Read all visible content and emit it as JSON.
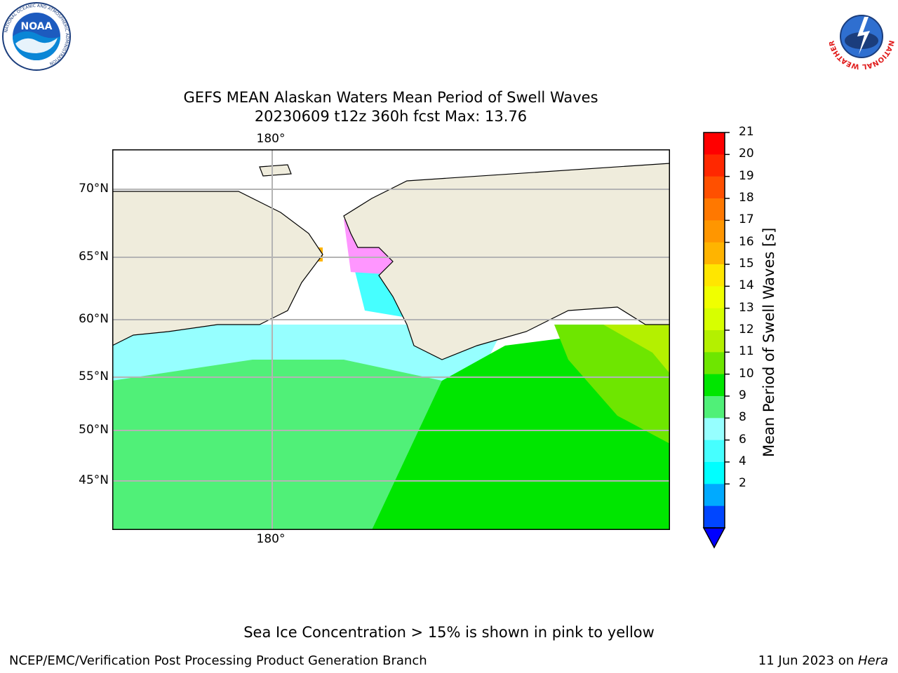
{
  "title": {
    "line1": "GEFS MEAN Alaskan Waters Mean Period of Swell Waves",
    "line2": "20230609 t12z 360h fcst   Max: 13.76"
  },
  "logos": {
    "left": {
      "name": "NOAA",
      "ring_text": "NATIONAL OCEANIC AND ATMOSPHERIC ADMINISTRATION",
      "bottom_text": "U.S. DEPARTMENT OF COMMERCE"
    },
    "right": {
      "name": "NATIONAL WEATHER SERVICE"
    }
  },
  "map": {
    "top_lon_label": "180°",
    "bottom_lon_label": "180°",
    "lat_labels": [
      "70°N",
      "65°N",
      "60°N",
      "55°N",
      "50°N",
      "45°N"
    ],
    "colors": {
      "land": "#efecdc",
      "coast": "#000000",
      "grid": "#b4b4b4"
    }
  },
  "colorbar": {
    "title": "Mean Period of Swell Waves [s]",
    "ticks": [
      "21",
      "20",
      "19",
      "18",
      "17",
      "16",
      "15",
      "14",
      "13",
      "12",
      "11",
      "10",
      "9",
      "8",
      "6",
      "4",
      "2"
    ],
    "colors": [
      "#ff0000",
      "#ff2800",
      "#ff5000",
      "#ff7800",
      "#ff9600",
      "#ffb400",
      "#ffe600",
      "#f0ff00",
      "#d7ff00",
      "#b4f000",
      "#6ee600",
      "#00e600",
      "#50f078",
      "#96ffff",
      "#46ffff",
      "#00ffff",
      "#00aaff",
      "#0046ff"
    ],
    "under_color": "#0000ff"
  },
  "note": "Sea Ice Concentration > 15% is shown in pink to yellow",
  "footer": {
    "left": "NCEP/EMC/Verification Post Processing Product Generation Branch",
    "date": "11 Jun 2023 on ",
    "machine": "Hera"
  }
}
